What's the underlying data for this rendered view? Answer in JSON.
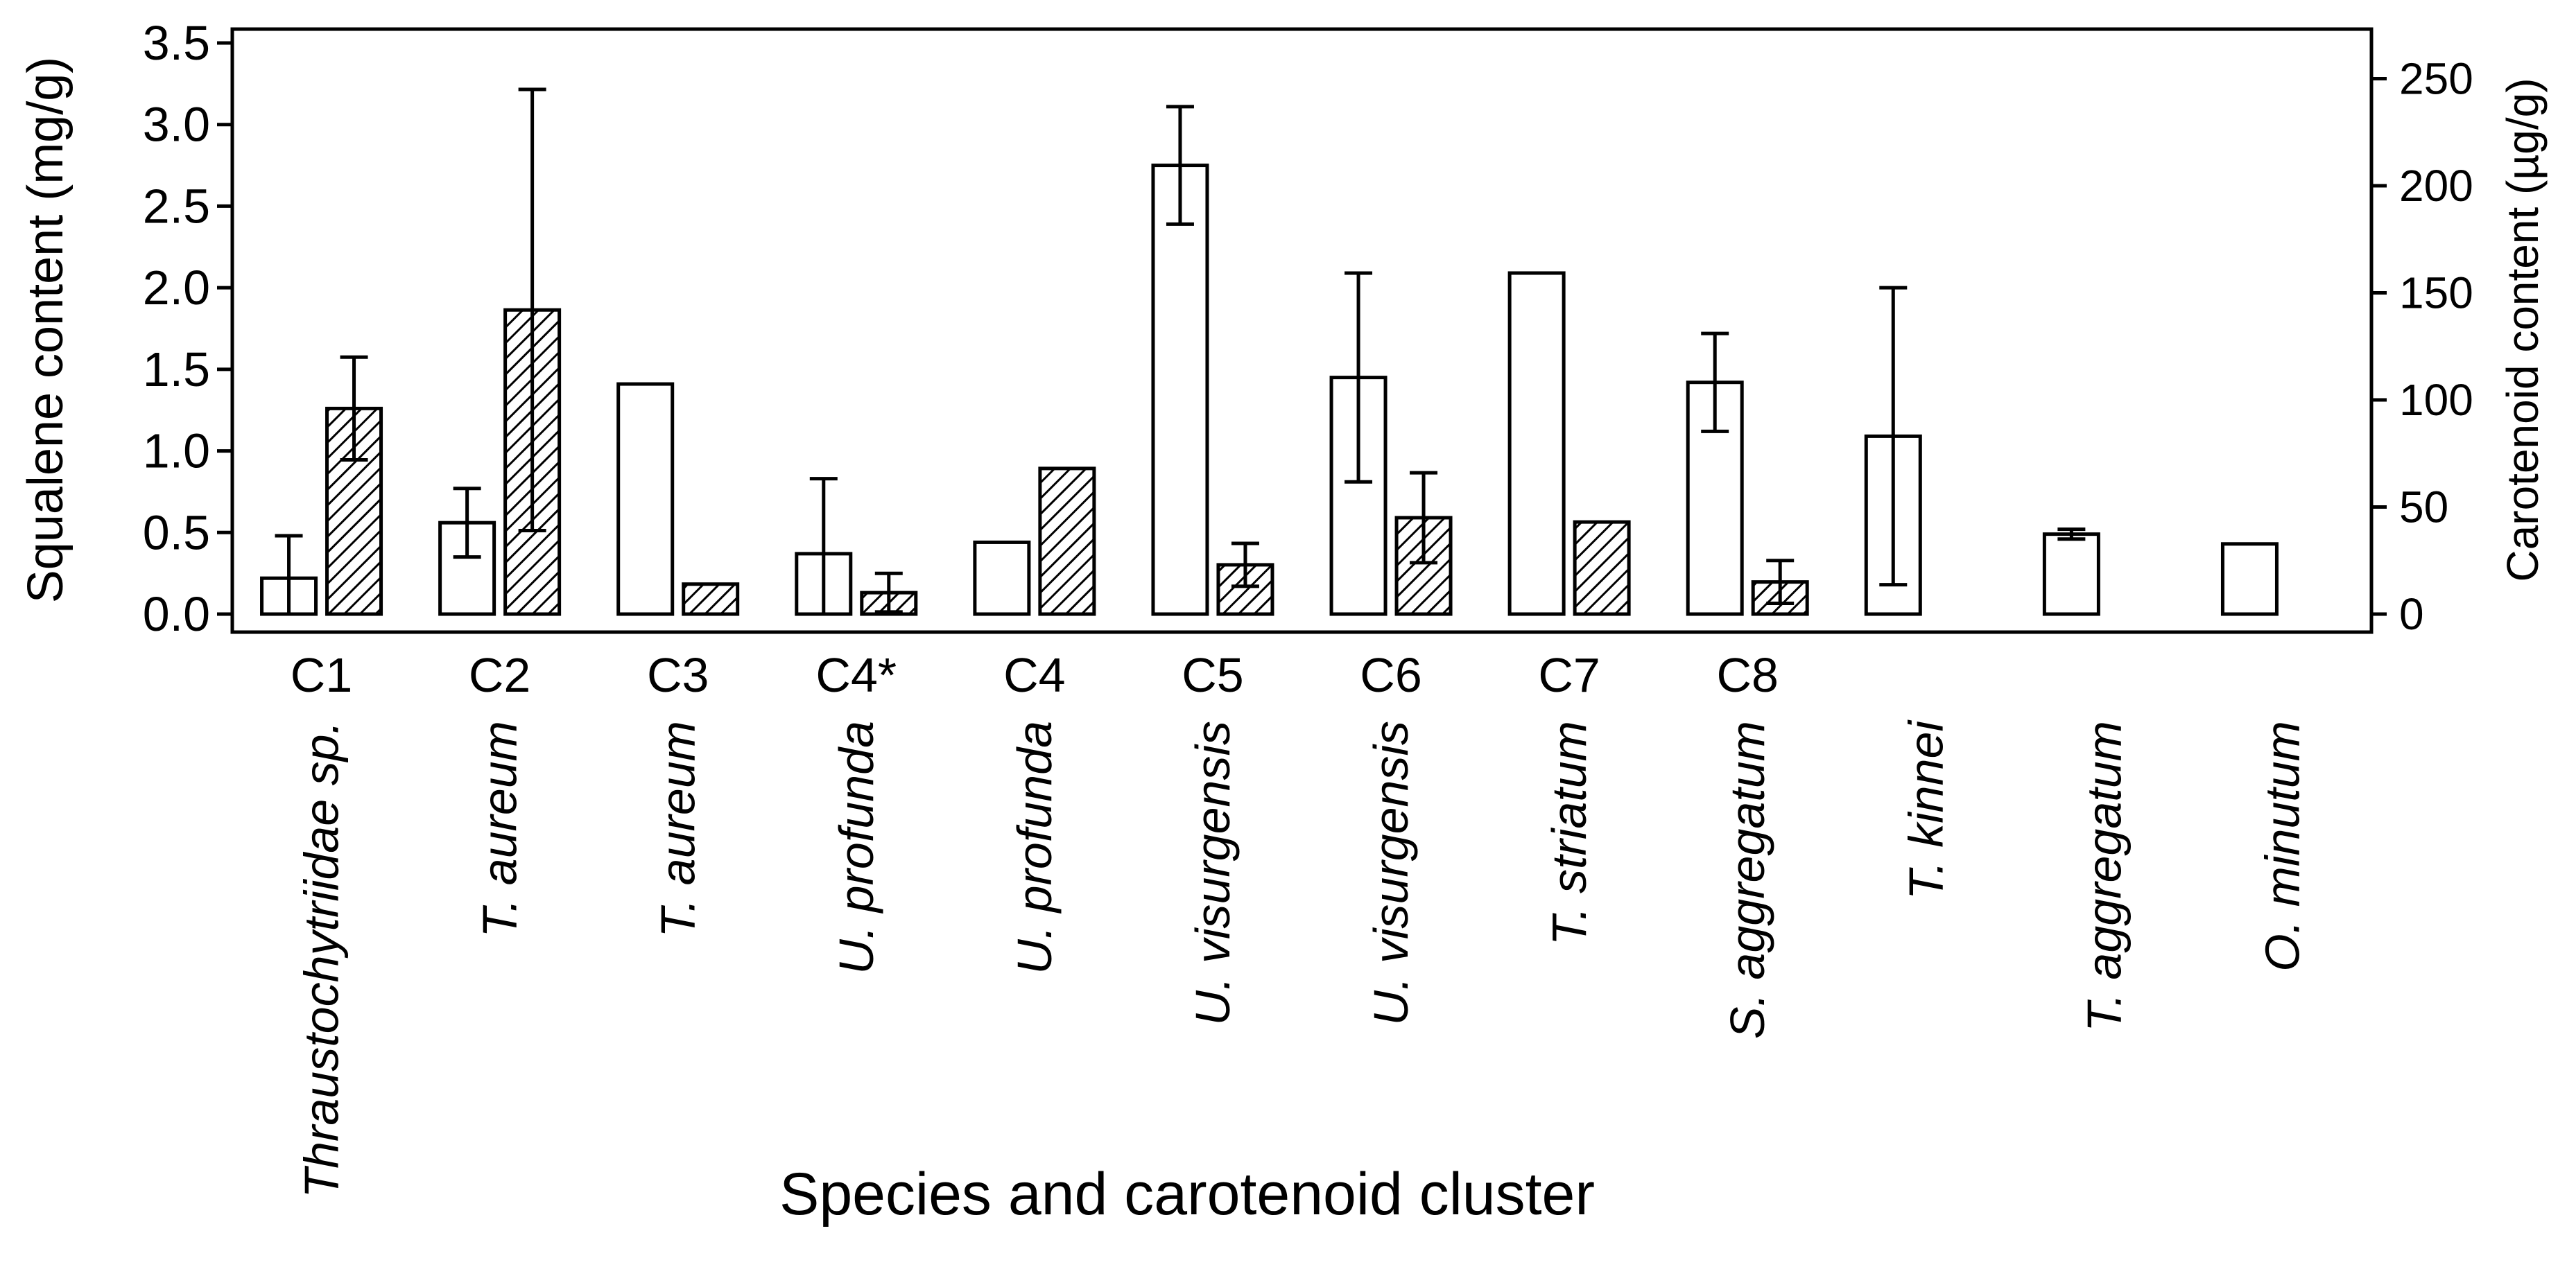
{
  "chart_data": {
    "type": "bar",
    "title": "",
    "xlabel": "Species and carotenoid cluster",
    "ylabel": "Squalene content (mg/g)",
    "y2label": "Carotenoid content (µg/g)",
    "ylim": [
      0,
      3.5
    ],
    "y2lim": [
      0,
      266.67
    ],
    "yticks": [
      "0.0",
      "0.5",
      "1.0",
      "1.5",
      "2.0",
      "2.5",
      "3.0",
      "3.5"
    ],
    "y2ticks": [
      "0",
      "50",
      "100",
      "150",
      "200",
      "250"
    ],
    "clusters": [
      "C1",
      "C2",
      "C3",
      "C4*",
      "C4",
      "C5",
      "C6",
      "C7",
      "C8",
      "",
      "",
      ""
    ],
    "species": [
      "Thraustochytriidae sp.",
      "T. aureum",
      "T. aureum",
      "U. profunda",
      "U. profunda",
      "U. visurgensis",
      "U. visurgensis",
      "T. striatum",
      "S. aggregatum",
      "T. kinnei",
      "T. aggregatum",
      "O. minutum"
    ],
    "series": [
      {
        "name": "Squalene",
        "axis": "left",
        "fill": "white",
        "values": [
          0.22,
          0.56,
          1.41,
          0.37,
          0.44,
          2.75,
          1.45,
          2.09,
          1.42,
          1.09,
          0.49,
          0.43
        ],
        "error": [
          0.26,
          0.21,
          null,
          0.46,
          null,
          0.36,
          0.64,
          null,
          0.3,
          0.91,
          0.03,
          null
        ]
      },
      {
        "name": "Carotenoid",
        "axis": "right",
        "fill": "hatched",
        "values": [
          96,
          142,
          14,
          10,
          68,
          23,
          45,
          43,
          15,
          null,
          null,
          null
        ],
        "error": [
          24,
          103,
          null,
          9,
          null,
          10,
          21,
          null,
          10,
          null,
          null,
          null
        ]
      }
    ]
  }
}
